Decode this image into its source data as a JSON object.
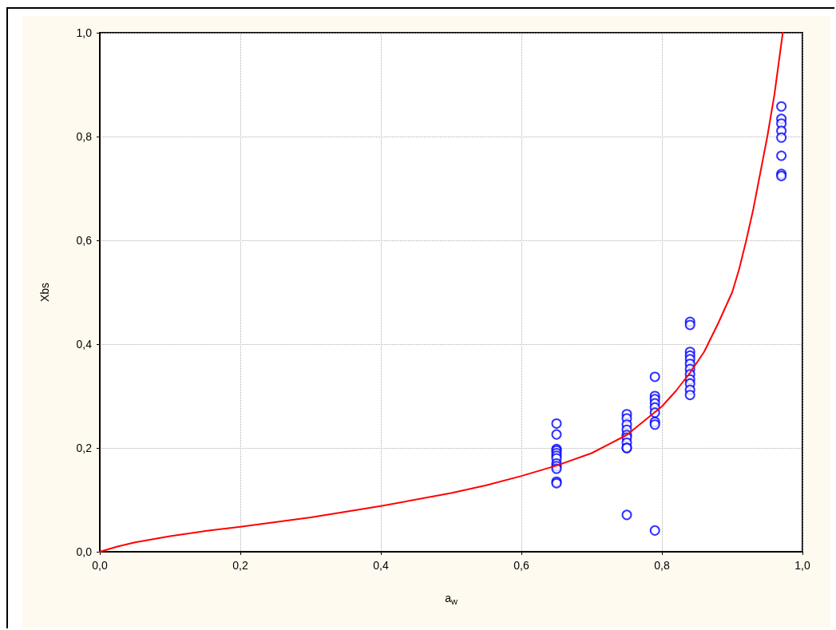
{
  "chart_data": {
    "type": "scatter",
    "xlabel": "a$_{w}$",
    "ylabel": "Xbs",
    "xlim": [
      0,
      1
    ],
    "ylim": [
      0,
      1
    ],
    "xticks": [
      {
        "value": 0,
        "label": "0,0"
      },
      {
        "value": 0.2,
        "label": "0,2"
      },
      {
        "value": 0.4,
        "label": "0,4"
      },
      {
        "value": 0.6,
        "label": "0,6"
      },
      {
        "value": 0.8,
        "label": "0,8"
      },
      {
        "value": 1,
        "label": "1,0"
      }
    ],
    "yticks": [
      {
        "value": 0,
        "label": "0,0"
      },
      {
        "value": 0.2,
        "label": "0,2"
      },
      {
        "value": 0.4,
        "label": "0,4"
      },
      {
        "value": 0.6,
        "label": "0,6"
      },
      {
        "value": 0.8,
        "label": "0,8"
      },
      {
        "value": 1,
        "label": "1,0"
      }
    ],
    "grid": true,
    "marker": "circle",
    "series": [
      {
        "color": "#0000ff",
        "x": [
          0.65,
          0.65,
          0.65,
          0.65,
          0.65,
          0.65,
          0.65,
          0.65,
          0.65,
          0.65,
          0.65,
          0.65,
          0.75,
          0.75,
          0.75,
          0.75,
          0.75,
          0.75,
          0.75,
          0.75,
          0.75,
          0.75,
          0.79,
          0.79,
          0.79,
          0.79,
          0.79,
          0.79,
          0.79,
          0.79,
          0.79,
          0.84,
          0.84,
          0.84,
          0.84,
          0.84,
          0.84,
          0.84,
          0.84,
          0.84,
          0.84,
          0.84,
          0.84,
          0.97,
          0.97,
          0.97,
          0.97,
          0.97,
          0.97,
          0.97,
          0.97
        ],
        "values": [
          0.247,
          0.226,
          0.198,
          0.195,
          0.19,
          0.185,
          0.18,
          0.17,
          0.165,
          0.16,
          0.135,
          0.132,
          0.265,
          0.257,
          0.245,
          0.235,
          0.225,
          0.22,
          0.21,
          0.2,
          0.2,
          0.071,
          0.337,
          0.3,
          0.294,
          0.286,
          0.278,
          0.268,
          0.25,
          0.245,
          0.041,
          0.443,
          0.437,
          0.385,
          0.378,
          0.371,
          0.362,
          0.352,
          0.342,
          0.332,
          0.324,
          0.312,
          0.302,
          0.858,
          0.834,
          0.825,
          0.811,
          0.798,
          0.763,
          0.728,
          0.724
        ]
      },
      {
        "type": "line",
        "color": "#ff0000",
        "marker": "none",
        "line_style": "solid",
        "x": [
          0,
          0.025,
          0.05,
          0.1,
          0.15,
          0.2,
          0.3,
          0.4,
          0.5,
          0.55,
          0.6,
          0.65,
          0.7,
          0.75,
          0.8,
          0.82,
          0.84,
          0.86,
          0.88,
          0.9,
          0.91,
          0.92,
          0.93,
          0.94,
          0.95,
          0.96,
          0.965,
          0.972
        ],
        "values": [
          0,
          0.01,
          0.018,
          0.03,
          0.04,
          0.048,
          0.066,
          0.088,
          0.113,
          0.128,
          0.146,
          0.166,
          0.19,
          0.225,
          0.28,
          0.31,
          0.345,
          0.385,
          0.44,
          0.5,
          0.545,
          0.6,
          0.66,
          0.73,
          0.8,
          0.88,
          0.93,
          1.0
        ]
      }
    ]
  }
}
